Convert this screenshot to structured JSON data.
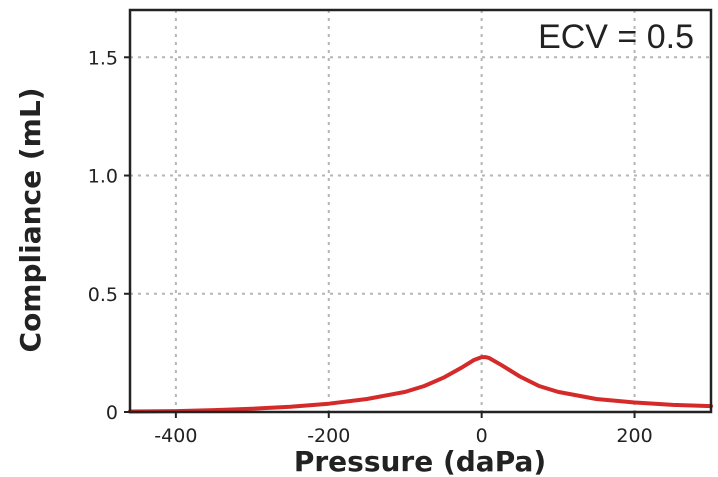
{
  "chart_data": {
    "type": "line",
    "title": "",
    "annotation": "ECV = 0.5",
    "xlabel": "Pressure (daPa)",
    "ylabel": "Compliance (mL)",
    "xlim": [
      -460,
      300
    ],
    "ylim": [
      0,
      1.7
    ],
    "xticks": [
      -400,
      -200,
      0,
      200
    ],
    "yticks": [
      0,
      0.5,
      1.0,
      1.5
    ],
    "xtick_labels": [
      "-400",
      "-200",
      "0",
      "200"
    ],
    "ytick_labels": [
      "0",
      "0.5",
      "1.0",
      "1.5"
    ],
    "grid": true,
    "legend": "none",
    "series": [
      {
        "color": "#d42a2a",
        "x": [
          -460,
          -400,
          -350,
          -300,
          -250,
          -200,
          -150,
          -100,
          -75,
          -50,
          -25,
          -10,
          0,
          5,
          10,
          25,
          50,
          75,
          100,
          150,
          200,
          250,
          300
        ],
        "y": [
          0.002,
          0.004,
          0.008,
          0.014,
          0.022,
          0.035,
          0.055,
          0.085,
          0.11,
          0.145,
          0.19,
          0.22,
          0.232,
          0.232,
          0.228,
          0.2,
          0.15,
          0.11,
          0.085,
          0.055,
          0.04,
          0.03,
          0.025
        ]
      }
    ]
  }
}
